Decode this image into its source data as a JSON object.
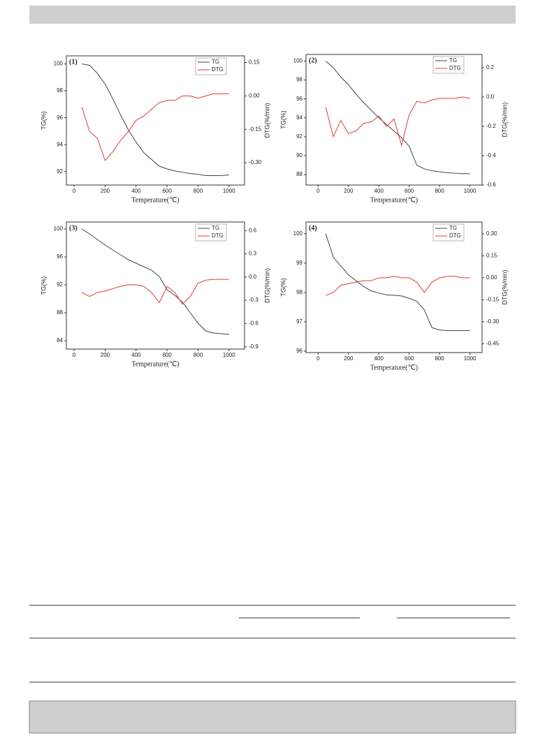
{
  "chart_data": [
    {
      "type": "line",
      "label": "(1)",
      "xlabel": "Temperature(℃)",
      "ylabel": "TG(%)",
      "y2label": "DTG(%/min)",
      "x": [
        50,
        100,
        150,
        200,
        250,
        300,
        350,
        400,
        450,
        500,
        550,
        600,
        650,
        700,
        750,
        800,
        850,
        900,
        950,
        1000
      ],
      "series": [
        {
          "name": "TG",
          "color": "#444444",
          "values": [
            100,
            99.9,
            99.3,
            98.5,
            97.4,
            96.2,
            95.1,
            94.2,
            93.4,
            92.9,
            92.4,
            92.2,
            92.05,
            91.95,
            91.85,
            91.8,
            91.7,
            91.7,
            91.7,
            91.75
          ]
        },
        {
          "name": "DTG",
          "color": "#e03a3a",
          "axis": "y2",
          "values": [
            -0.05,
            -0.16,
            -0.19,
            -0.29,
            -0.25,
            -0.2,
            -0.16,
            -0.11,
            -0.09,
            -0.06,
            -0.03,
            -0.02,
            -0.02,
            0,
            0,
            -0.01,
            0,
            0.01,
            0.01,
            0.01
          ]
        }
      ],
      "xlim": [
        -50,
        1100
      ],
      "xticks": [
        0,
        200,
        400,
        600,
        800,
        1000
      ],
      "ylim": [
        91,
        100.6
      ],
      "yticks": [
        92,
        94,
        96,
        98,
        100
      ],
      "y2lim": [
        -0.4,
        0.18
      ],
      "y2ticks": [
        0.15,
        {
          "value": 0,
          "label": "0.00"
        },
        -0.15,
        {
          "value": -0.3,
          "label": "-0.30"
        }
      ]
    },
    {
      "type": "line",
      "label": "(2)",
      "xlabel": "Temperature(℃)",
      "ylabel": "TG(%)",
      "y2label": "DTG(%/min)",
      "x": [
        50,
        100,
        150,
        200,
        250,
        300,
        350,
        400,
        450,
        500,
        550,
        600,
        650,
        700,
        750,
        800,
        850,
        900,
        950,
        1000
      ],
      "series": [
        {
          "name": "TG",
          "color": "#444444",
          "values": [
            100,
            99.3,
            98.3,
            97.5,
            96.5,
            95.6,
            94.8,
            94,
            93.3,
            92.6,
            91.9,
            91,
            89,
            88.6,
            88.4,
            88.3,
            88.2,
            88.15,
            88.1,
            88.1
          ]
        },
        {
          "name": "DTG",
          "color": "#e03a3a",
          "axis": "y2",
          "values": [
            -0.07,
            -0.27,
            -0.16,
            -0.25,
            -0.23,
            -0.18,
            -0.17,
            -0.13,
            -0.2,
            -0.15,
            -0.33,
            -0.12,
            -0.03,
            -0.04,
            -0.02,
            -0.01,
            -0.01,
            -0.01,
            0,
            -0.01
          ]
        }
      ],
      "xlim": [
        -80,
        1080
      ],
      "xticks": [
        0,
        200,
        400,
        600,
        800,
        1000
      ],
      "ylim": [
        86.9,
        100.7
      ],
      "yticks": [
        88,
        90,
        92,
        94,
        96,
        98,
        100
      ],
      "y2lim": [
        -0.6,
        0.29
      ],
      "y2ticks": [
        0.2,
        {
          "value": 0,
          "label": "0.0"
        },
        -0.2,
        -0.4,
        -0.6
      ]
    },
    {
      "type": "line",
      "label": "(3)",
      "xlabel": "Temperature(℃)",
      "ylabel": "TG(%)",
      "y2label": "DTG(%/min)",
      "x": [
        50,
        100,
        150,
        200,
        250,
        300,
        350,
        400,
        450,
        500,
        550,
        600,
        650,
        700,
        750,
        800,
        850,
        900,
        950,
        1000
      ],
      "series": [
        {
          "name": "TG",
          "color": "#444444",
          "values": [
            100,
            99.3,
            98.5,
            97.7,
            97,
            96.3,
            95.6,
            95.1,
            94.6,
            94.1,
            93.2,
            91.3,
            90.5,
            89.5,
            88,
            86.5,
            85.4,
            85.1,
            85,
            84.9
          ]
        },
        {
          "name": "DTG",
          "color": "#e03a3a",
          "axis": "y2",
          "values": [
            -0.2,
            -0.25,
            -0.2,
            -0.18,
            -0.15,
            -0.12,
            -0.1,
            -0.1,
            -0.12,
            -0.2,
            -0.33,
            -0.12,
            -0.2,
            -0.35,
            -0.25,
            -0.08,
            -0.04,
            -0.03,
            -0.03,
            -0.03
          ]
        }
      ],
      "xlim": [
        -50,
        1100
      ],
      "xticks": [
        0,
        200,
        400,
        600,
        800,
        1000
      ],
      "ylim": [
        82.8,
        101
      ],
      "yticks": [
        84,
        88,
        92,
        96,
        100
      ],
      "y2lim": [
        -0.93,
        0.71
      ],
      "y2ticks": [
        0.6,
        0.3,
        {
          "value": 0,
          "label": "0.0"
        },
        -0.3,
        -0.6,
        -0.9
      ]
    },
    {
      "type": "line",
      "label": "(4)",
      "xlabel": "Temperature(℃)",
      "ylabel": "TG(%)",
      "y2label": "DTG(%/min)",
      "x": [
        50,
        100,
        150,
        200,
        250,
        300,
        350,
        400,
        450,
        500,
        550,
        600,
        650,
        700,
        750,
        800,
        850,
        900,
        950,
        1000
      ],
      "series": [
        {
          "name": "TG",
          "color": "#444444",
          "values": [
            100,
            99.2,
            98.9,
            98.6,
            98.4,
            98.2,
            98.05,
            97.98,
            97.92,
            97.9,
            97.88,
            97.8,
            97.7,
            97.4,
            96.8,
            96.72,
            96.7,
            96.7,
            96.7,
            96.7
          ]
        },
        {
          "name": "DTG",
          "color": "#e03a3a",
          "axis": "y2",
          "values": [
            -0.12,
            -0.1,
            -0.05,
            -0.04,
            -0.03,
            -0.02,
            -0.02,
            0,
            0,
            0.01,
            0,
            0,
            -0.03,
            -0.1,
            -0.03,
            0,
            0.01,
            0.01,
            0,
            0
          ]
        }
      ],
      "xlim": [
        -80,
        1080
      ],
      "xticks": [
        0,
        200,
        400,
        600,
        800,
        1000
      ],
      "ylim": [
        95.95,
        100.4
      ],
      "yticks": [
        96,
        97,
        98,
        99,
        100
      ],
      "y2lim": [
        -0.51,
        0.38
      ],
      "y2ticks": [
        {
          "value": 0.3,
          "label": "0.30"
        },
        0.15,
        {
          "value": 0,
          "label": "0.00"
        },
        -0.15,
        {
          "value": -0.3,
          "label": "-0.30"
        },
        -0.45
      ]
    }
  ]
}
